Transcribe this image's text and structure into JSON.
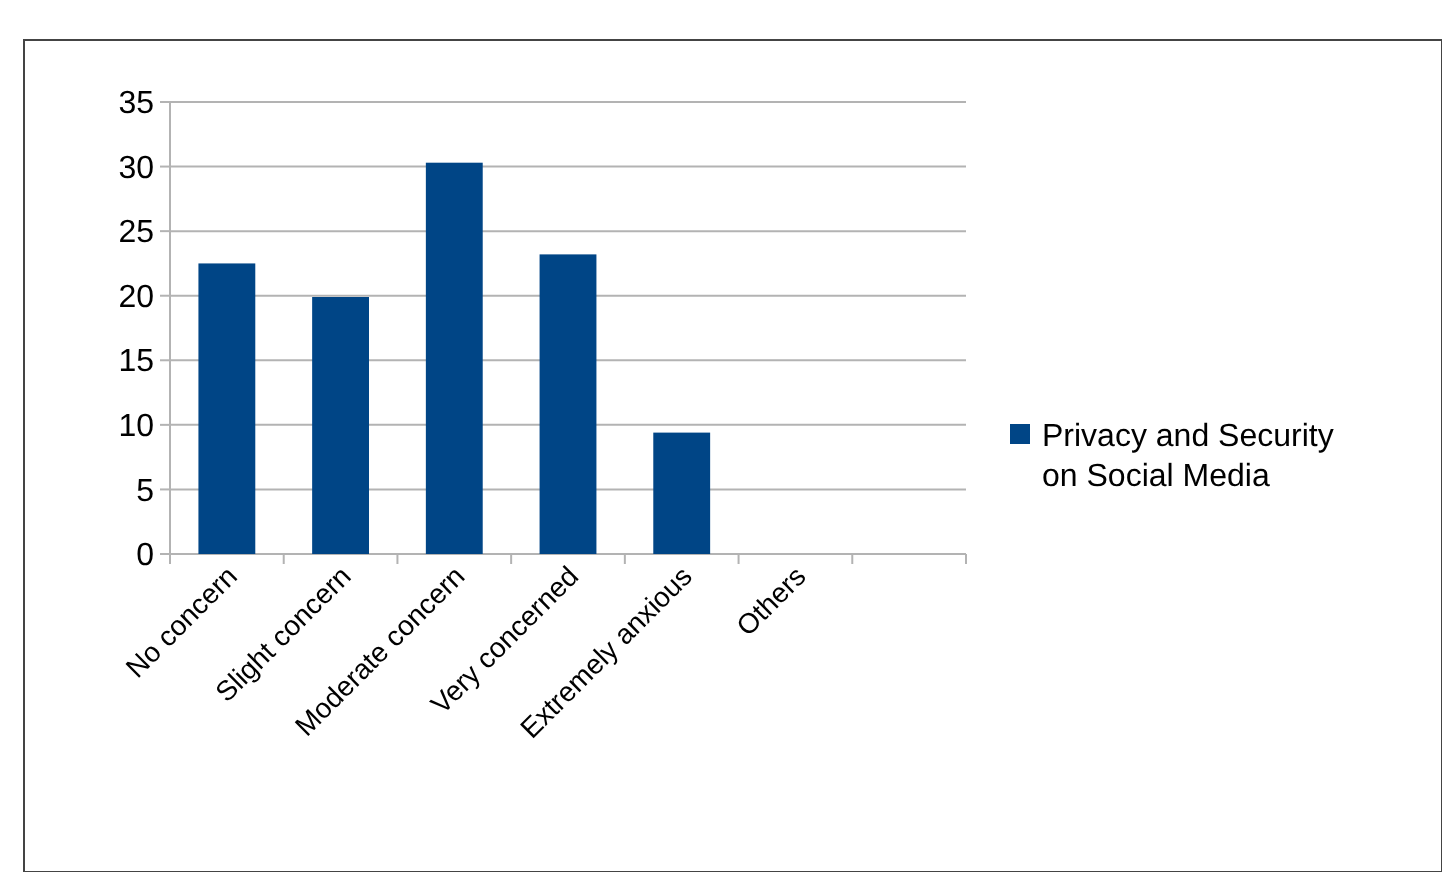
{
  "chart_data": {
    "type": "bar",
    "categories": [
      "No concern",
      "Slight concern",
      "Moderate concern",
      "Very concerned",
      "Extremely anxious",
      "Others",
      null
    ],
    "series": [
      {
        "name": "Privacy and Security on Social Media",
        "color": "#004586",
        "values": [
          22.5,
          19.9,
          30.3,
          23.2,
          9.4,
          0,
          null
        ]
      }
    ],
    "ylim": [
      0,
      35
    ],
    "yticks": [
      0,
      5,
      10,
      15,
      20,
      25,
      30,
      35
    ],
    "grid": "y",
    "legend": "right"
  }
}
